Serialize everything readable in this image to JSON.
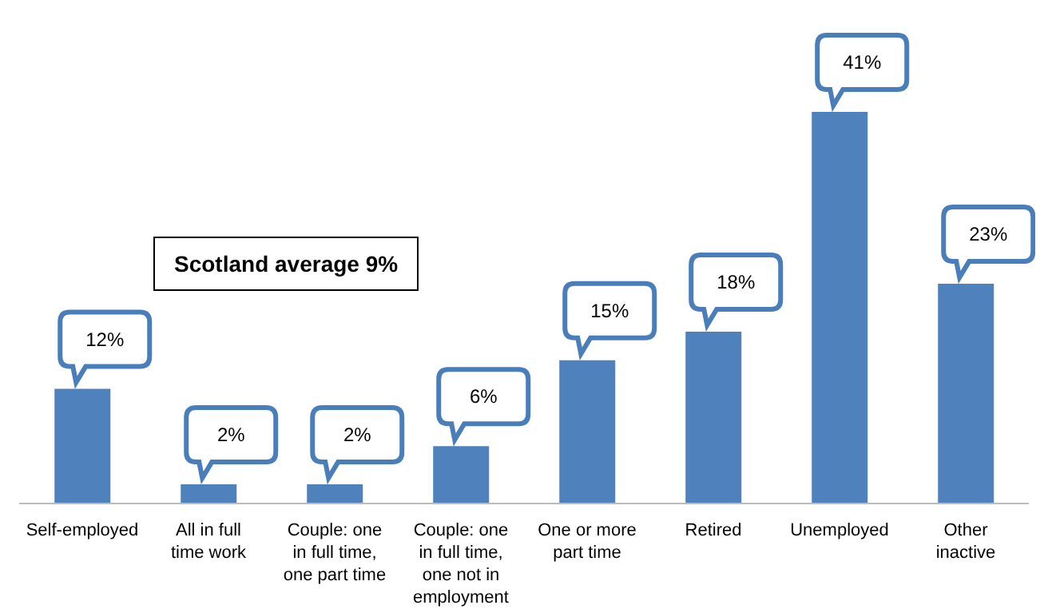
{
  "chart_data": {
    "type": "bar",
    "categories": [
      "Self-employed",
      "All in full time work",
      "Couple: one in full time, one part time",
      "Couple: one in full time, one not in employment",
      "One or more part time",
      "Retired",
      "Unemployed",
      "Other inactive"
    ],
    "values": [
      12,
      2,
      2,
      6,
      15,
      18,
      41,
      23
    ],
    "color": "#4f81bd",
    "data_labels": true,
    "value_labels": [
      "12%",
      "2%",
      "2%",
      "6%",
      "15%",
      "18%",
      "41%",
      "23%"
    ],
    "annotations": [
      "Scotland average 9%"
    ]
  }
}
